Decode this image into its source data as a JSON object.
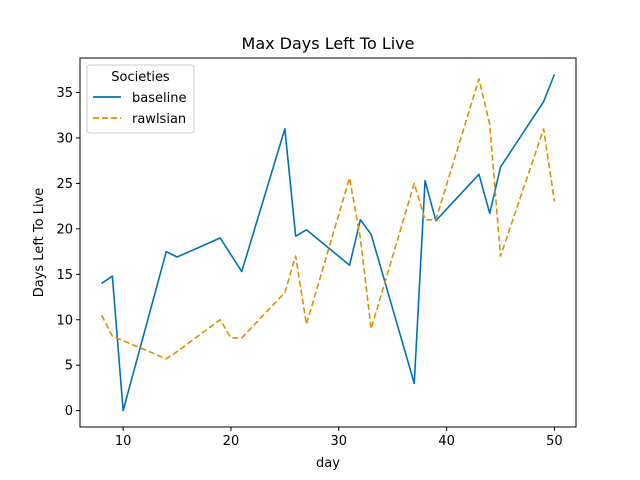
{
  "chart_data": {
    "type": "line",
    "title": "Max Days Left To Live",
    "xlabel": "day",
    "ylabel": "Days Left To Live",
    "xlim": [
      6,
      52
    ],
    "ylim": [
      -1.8,
      38.8
    ],
    "xticks": [
      10,
      20,
      30,
      40,
      50
    ],
    "yticks": [
      0,
      5,
      10,
      15,
      20,
      25,
      30,
      35
    ],
    "grid": false,
    "legend": {
      "title": "Societies",
      "position": "top-left"
    },
    "series": [
      {
        "name": "baseline",
        "color": "#0072b2",
        "dash": "solid",
        "points": [
          [
            8,
            14
          ],
          [
            9,
            14.8
          ],
          [
            10,
            0
          ],
          [
            14,
            17.5
          ],
          [
            15,
            16.9
          ],
          [
            19,
            19
          ],
          [
            21,
            15.3
          ],
          [
            25,
            31
          ],
          [
            26,
            19.2
          ],
          [
            27,
            19.9
          ],
          [
            31,
            16
          ],
          [
            32,
            21
          ],
          [
            33,
            19.4
          ],
          [
            37,
            3
          ],
          [
            38,
            25.3
          ],
          [
            39,
            20.9
          ],
          [
            43,
            26
          ],
          [
            44,
            21.7
          ],
          [
            45,
            26.8
          ],
          [
            49,
            34
          ],
          [
            50,
            37
          ]
        ]
      },
      {
        "name": "rawlsian",
        "color": "#de8f05",
        "dash": "dashed",
        "points": [
          [
            8,
            10.5
          ],
          [
            9,
            8.2
          ],
          [
            10,
            7.7
          ],
          [
            14,
            5.7
          ],
          [
            15,
            6.5
          ],
          [
            19,
            10
          ],
          [
            20,
            8
          ],
          [
            21,
            8
          ],
          [
            25,
            13
          ],
          [
            26,
            17
          ],
          [
            27,
            9.5
          ],
          [
            31,
            25.6
          ],
          [
            32,
            19
          ],
          [
            33,
            9
          ],
          [
            37,
            25
          ],
          [
            38,
            21
          ],
          [
            39,
            21
          ],
          [
            43,
            36.5
          ],
          [
            44,
            31.5
          ],
          [
            45,
            17
          ],
          [
            49,
            31
          ],
          [
            50,
            23
          ]
        ]
      }
    ]
  }
}
